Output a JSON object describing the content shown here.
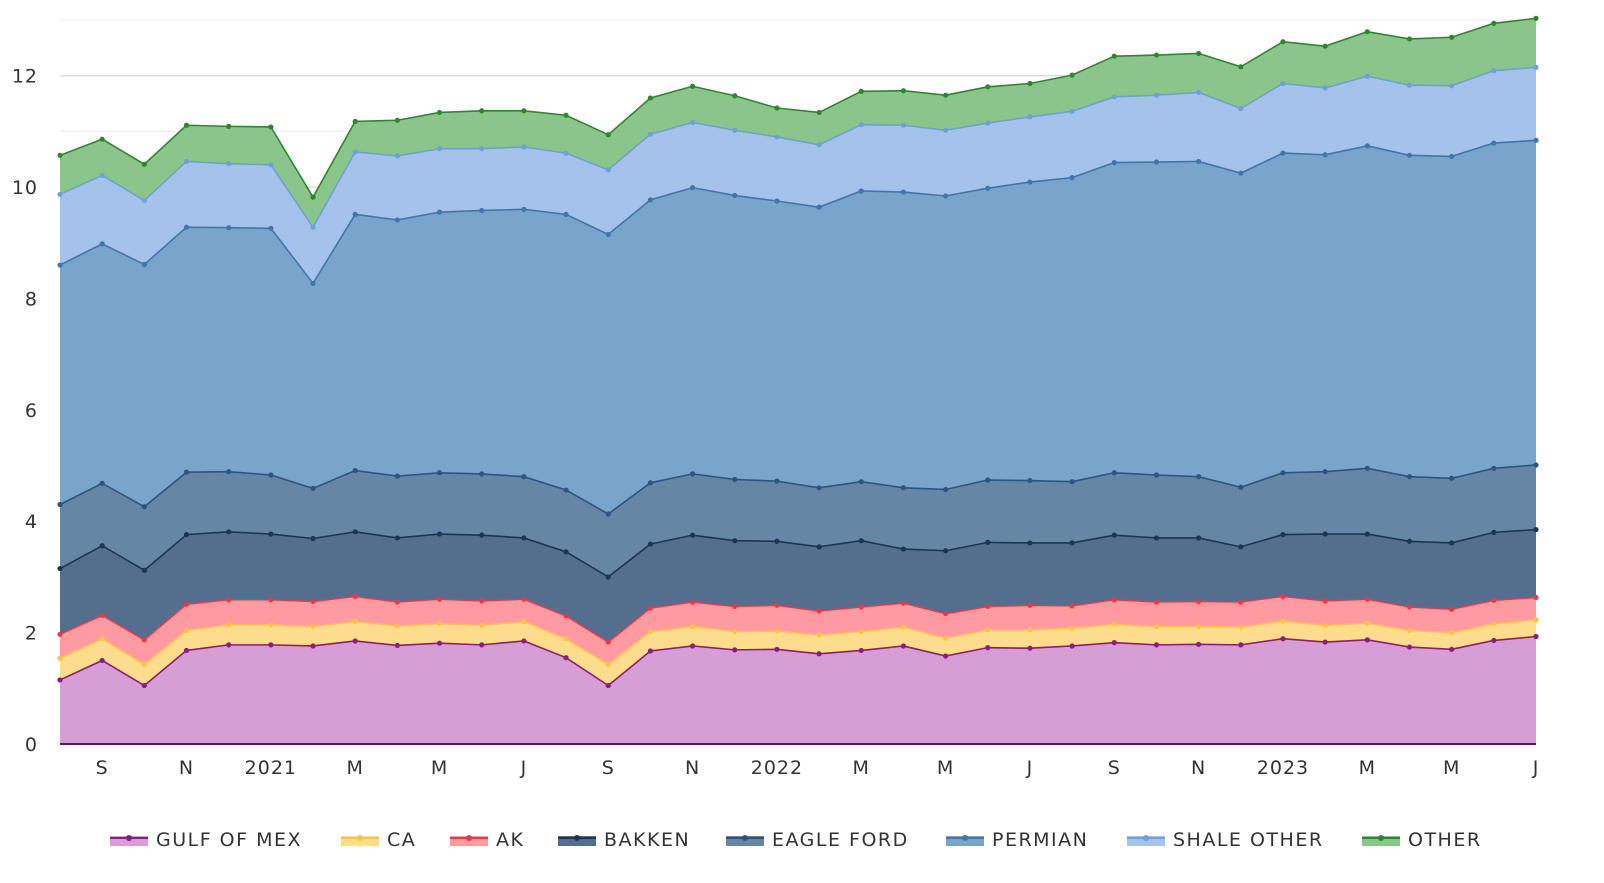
{
  "chart_data": {
    "type": "area",
    "stacked": true,
    "title": "",
    "xlabel": "",
    "ylabel": "",
    "ylim": [
      0,
      13
    ],
    "grid": true,
    "legend": "bottom",
    "x_points": 36,
    "x_tick_labels": [
      {
        "index": 1,
        "label": "S"
      },
      {
        "index": 3,
        "label": "N"
      },
      {
        "index": 5,
        "label": "2021"
      },
      {
        "index": 7,
        "label": "M"
      },
      {
        "index": 9,
        "label": "M"
      },
      {
        "index": 11,
        "label": "J"
      },
      {
        "index": 13,
        "label": "S"
      },
      {
        "index": 15,
        "label": "N"
      },
      {
        "index": 17,
        "label": "2022"
      },
      {
        "index": 19,
        "label": "M"
      },
      {
        "index": 21,
        "label": "M"
      },
      {
        "index": 23,
        "label": "J"
      },
      {
        "index": 25,
        "label": "S"
      },
      {
        "index": 27,
        "label": "N"
      },
      {
        "index": 29,
        "label": "2023"
      },
      {
        "index": 31,
        "label": "M"
      },
      {
        "index": 33,
        "label": "M"
      },
      {
        "index": 35,
        "label": "J"
      }
    ],
    "y_ticks": [
      0,
      2,
      4,
      6,
      8,
      10,
      12
    ],
    "series": [
      {
        "name": "GULF OF MEX",
        "fill": "#d59ed5",
        "line": "#8b1a8b",
        "values": [
          1.15,
          1.5,
          1.05,
          1.68,
          1.78,
          1.78,
          1.76,
          1.85,
          1.77,
          1.81,
          1.78,
          1.85,
          1.55,
          1.05,
          1.67,
          1.76,
          1.69,
          1.7,
          1.62,
          1.68,
          1.76,
          1.58,
          1.73,
          1.72,
          1.76,
          1.82,
          1.78,
          1.79,
          1.78,
          1.89,
          1.83,
          1.87,
          1.74,
          1.7,
          1.86,
          1.93
        ]
      },
      {
        "name": "CA",
        "fill": "#fddc8e",
        "line": "#f4c542",
        "values": [
          0.39,
          0.39,
          0.38,
          0.36,
          0.36,
          0.36,
          0.35,
          0.35,
          0.35,
          0.35,
          0.35,
          0.35,
          0.34,
          0.38,
          0.35,
          0.35,
          0.33,
          0.33,
          0.34,
          0.34,
          0.34,
          0.32,
          0.32,
          0.33,
          0.32,
          0.33,
          0.33,
          0.32,
          0.32,
          0.32,
          0.3,
          0.3,
          0.3,
          0.3,
          0.3,
          0.3
        ]
      },
      {
        "name": "AK",
        "fill": "#ff9aa0",
        "line": "#e8394a",
        "values": [
          0.43,
          0.42,
          0.44,
          0.47,
          0.45,
          0.45,
          0.45,
          0.45,
          0.43,
          0.44,
          0.44,
          0.4,
          0.41,
          0.4,
          0.42,
          0.44,
          0.45,
          0.46,
          0.43,
          0.44,
          0.43,
          0.44,
          0.42,
          0.44,
          0.4,
          0.44,
          0.44,
          0.45,
          0.45,
          0.44,
          0.44,
          0.43,
          0.42,
          0.42,
          0.42,
          0.4
        ]
      },
      {
        "name": "BAKKEN",
        "fill": "#546e8e",
        "line": "#1c3553",
        "values": [
          1.18,
          1.25,
          1.25,
          1.25,
          1.22,
          1.18,
          1.13,
          1.16,
          1.15,
          1.17,
          1.18,
          1.1,
          1.15,
          1.17,
          1.15,
          1.2,
          1.18,
          1.15,
          1.15,
          1.19,
          0.97,
          1.13,
          1.15,
          1.12,
          1.13,
          1.16,
          1.15,
          1.14,
          0.99,
          1.11,
          1.2,
          1.17,
          1.18,
          1.19,
          1.22,
          1.22
        ]
      },
      {
        "name": "EAGLE FORD",
        "fill": "#6686a6",
        "line": "#2e5580",
        "values": [
          1.15,
          1.12,
          1.14,
          1.12,
          1.08,
          1.06,
          0.9,
          1.1,
          1.11,
          1.1,
          1.1,
          1.1,
          1.11,
          1.13,
          1.1,
          1.1,
          1.1,
          1.08,
          1.06,
          1.06,
          1.1,
          1.1,
          1.12,
          1.12,
          1.1,
          1.12,
          1.13,
          1.1,
          1.07,
          1.11,
          1.12,
          1.18,
          1.16,
          1.16,
          1.15,
          1.16
        ]
      },
      {
        "name": "PERMIAN",
        "fill": "#7aa4c9",
        "line": "#3f78a8",
        "values": [
          4.3,
          4.3,
          4.35,
          4.4,
          4.38,
          4.43,
          3.68,
          4.6,
          4.6,
          4.68,
          4.73,
          4.8,
          4.95,
          5.02,
          5.08,
          5.14,
          5.1,
          5.03,
          5.04,
          5.22,
          5.31,
          5.27,
          5.24,
          5.36,
          5.46,
          5.57,
          5.62,
          5.66,
          5.64,
          5.74,
          5.69,
          5.79,
          5.77,
          5.78,
          5.84,
          5.83
        ]
      },
      {
        "name": "SHALE OTHER",
        "fill": "#a5c2ea",
        "line": "#6f9fdc",
        "values": [
          1.27,
          1.23,
          1.15,
          1.18,
          1.15,
          1.14,
          1.01,
          1.12,
          1.15,
          1.14,
          1.11,
          1.12,
          1.1,
          1.16,
          1.18,
          1.17,
          1.17,
          1.15,
          1.12,
          1.19,
          1.2,
          1.18,
          1.17,
          1.17,
          1.19,
          1.18,
          1.2,
          1.24,
          1.16,
          1.25,
          1.2,
          1.25,
          1.26,
          1.27,
          1.3,
          1.31
        ]
      },
      {
        "name": "OTHER",
        "fill": "#8cc58c",
        "line": "#2a8a2a",
        "values": [
          0.7,
          0.65,
          0.65,
          0.65,
          0.67,
          0.68,
          0.54,
          0.55,
          0.64,
          0.65,
          0.68,
          0.65,
          0.68,
          0.63,
          0.65,
          0.65,
          0.62,
          0.52,
          0.58,
          0.6,
          0.62,
          0.63,
          0.65,
          0.6,
          0.65,
          0.73,
          0.72,
          0.7,
          0.75,
          0.75,
          0.75,
          0.8,
          0.83,
          0.87,
          0.85,
          0.88
        ]
      }
    ]
  }
}
